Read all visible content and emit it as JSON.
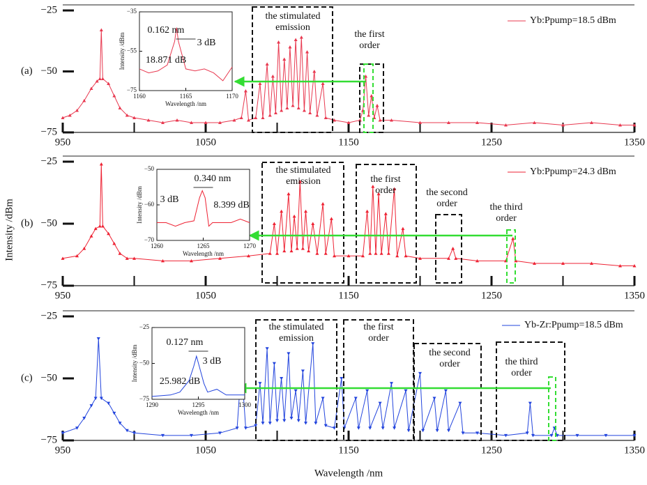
{
  "figure": {
    "xlabel": "Wavelength /nm",
    "ylabel": "Intensity /dBm"
  },
  "chart_data": [
    {
      "type": "line",
      "panel_label": "(a)",
      "marker": "up",
      "x": [
        950,
        955,
        960,
        965,
        970,
        974,
        976,
        977,
        978,
        982,
        986,
        990,
        995,
        1000,
        1010,
        1020,
        1030,
        1040,
        1050,
        1060,
        1070,
        1075,
        1078,
        1080,
        1085,
        1088,
        1090,
        1093,
        1095,
        1097,
        1099,
        1101,
        1103,
        1105,
        1107,
        1109,
        1111,
        1113,
        1115,
        1117,
        1119,
        1121,
        1123,
        1126,
        1128,
        1132,
        1134,
        1140,
        1150,
        1158,
        1160,
        1162,
        1164,
        1166,
        1168,
        1170,
        1172,
        1180,
        1200,
        1220,
        1240,
        1260,
        1280,
        1300,
        1320,
        1340,
        1350
      ],
      "series": [
        {
          "name": "Yb:Ppump=18.5 dBm",
          "color": "#e8384f",
          "values": [
            -69,
            -68,
            -66,
            -62,
            -57,
            -54,
            -53,
            -33,
            -53,
            -55,
            -60,
            -65,
            -68,
            -69,
            -70,
            -71,
            -70,
            -71,
            -71,
            -71,
            -70,
            -69,
            -58,
            -70,
            -69,
            -55,
            -69,
            -47,
            -68,
            -52,
            -67,
            -38,
            -66,
            -45,
            -65,
            -40,
            -64,
            -37,
            -65,
            -36,
            -66,
            -42,
            -67,
            -50,
            -68,
            -55,
            -69,
            -70,
            -71,
            -70,
            -66,
            -52,
            -68,
            -60,
            -69,
            -64,
            -70,
            -70,
            -71,
            -71,
            -71,
            -72,
            -71,
            -72,
            -71,
            -72,
            -72
          ]
        }
      ],
      "xlim": [
        950,
        1350
      ],
      "ylim": [
        -75,
        -25
      ],
      "xticks": [
        950,
        1050,
        1150,
        1250,
        1350
      ],
      "xminor": [
        1000,
        1100,
        1200,
        1300
      ],
      "yticks": [
        {
          "value": -25,
          "label": "−25"
        },
        {
          "value": -50,
          "label": "−50"
        },
        {
          "value": -75,
          "label": "−75"
        }
      ],
      "annotations": [
        [
          "the stimulated",
          "emission"
        ],
        [
          "the first",
          "order"
        ]
      ]
    },
    {
      "type": "line",
      "panel_label": "(b)",
      "marker": "up",
      "x": [
        950,
        960,
        965,
        970,
        973,
        976,
        977,
        978,
        982,
        986,
        990,
        995,
        1000,
        1020,
        1040,
        1060,
        1080,
        1095,
        1098,
        1100,
        1103,
        1105,
        1108,
        1110,
        1112,
        1114,
        1116,
        1118,
        1120,
        1122,
        1125,
        1128,
        1132,
        1134,
        1138,
        1140,
        1150,
        1160,
        1163,
        1165,
        1167,
        1169,
        1171,
        1173,
        1176,
        1178,
        1182,
        1184,
        1188,
        1190,
        1200,
        1220,
        1223,
        1225,
        1240,
        1260,
        1265,
        1267,
        1280,
        1300,
        1320,
        1340,
        1350
      ],
      "series": [
        {
          "name": "Yb:Ppump=24.3 dBm",
          "color": "#ee2233",
          "values": [
            -64,
            -63,
            -60,
            -55,
            -52,
            -51,
            -26,
            -51,
            -54,
            -58,
            -62,
            -64,
            -64,
            -65,
            -65,
            -64,
            -63,
            -62,
            -50,
            -62,
            -45,
            -61,
            -38,
            -61,
            -47,
            -60,
            -33,
            -60,
            -45,
            -61,
            -50,
            -62,
            -42,
            -62,
            -48,
            -63,
            -63,
            -63,
            -45,
            -62,
            -35,
            -62,
            -38,
            -62,
            -46,
            -62,
            -36,
            -63,
            -52,
            -63,
            -64,
            -64,
            -60,
            -64,
            -65,
            -65,
            -56,
            -65,
            -66,
            -66,
            -66,
            -67,
            -67
          ]
        }
      ],
      "xlim": [
        950,
        1350
      ],
      "ylim": [
        -75,
        -25
      ],
      "xticks": [
        950,
        1050,
        1150,
        1250,
        1350
      ],
      "xminor": [
        1000,
        1100,
        1200,
        1300
      ],
      "yticks": [
        {
          "value": -25,
          "label": "−25"
        },
        {
          "value": -50,
          "label": "−50"
        },
        {
          "value": -75,
          "label": "−75"
        }
      ],
      "annotations": [
        [
          "the stimulated",
          "emission"
        ],
        [
          "the first",
          "order"
        ],
        [
          "the second",
          "order"
        ],
        [
          "the third",
          "order"
        ]
      ]
    },
    {
      "type": "line",
      "panel_label": "(c)",
      "marker": "down",
      "x": [
        950,
        960,
        965,
        970,
        973,
        975,
        977,
        982,
        986,
        990,
        995,
        1000,
        1020,
        1040,
        1060,
        1072,
        1075,
        1078,
        1085,
        1088,
        1090,
        1093,
        1095,
        1098,
        1100,
        1103,
        1105,
        1108,
        1110,
        1113,
        1115,
        1118,
        1120,
        1125,
        1127,
        1132,
        1134,
        1140,
        1145,
        1147,
        1155,
        1157,
        1163,
        1165,
        1172,
        1174,
        1180,
        1182,
        1190,
        1192,
        1200,
        1202,
        1210,
        1212,
        1218,
        1220,
        1228,
        1230,
        1240,
        1260,
        1275,
        1277,
        1279,
        1292,
        1294,
        1296,
        1310,
        1330,
        1350
      ],
      "series": [
        {
          "name": "Yb-Zr:Ppump=18.5 dBm",
          "color": "#2244dd",
          "values": [
            -72,
            -70,
            -66,
            -61,
            -58,
            -34,
            -58,
            -60,
            -64,
            -68,
            -71,
            -72,
            -73,
            -73,
            -72,
            -70,
            -45,
            -70,
            -69,
            -52,
            -68,
            -38,
            -68,
            -44,
            -67,
            -50,
            -67,
            -40,
            -66,
            -55,
            -67,
            -47,
            -68,
            -36,
            -68,
            -58,
            -69,
            -70,
            -50,
            -70,
            -58,
            -70,
            -55,
            -70,
            -60,
            -70,
            -52,
            -70,
            -55,
            -71,
            -48,
            -71,
            -58,
            -71,
            -55,
            -71,
            -60,
            -72,
            -72,
            -73,
            -72,
            -60,
            -73,
            -73,
            -70,
            -73,
            -73,
            -73,
            -73
          ]
        }
      ],
      "xlim": [
        950,
        1350
      ],
      "ylim": [
        -75,
        -25
      ],
      "xticks": [
        950,
        1050,
        1150,
        1250,
        1350
      ],
      "xminor": [
        1000,
        1100,
        1200,
        1300
      ],
      "yticks": [
        {
          "value": -25,
          "label": "−25"
        },
        {
          "value": -50,
          "label": "−50"
        },
        {
          "value": -75,
          "label": "−75"
        }
      ],
      "annotations": [
        [
          "the stimulated",
          "emission"
        ],
        [
          "the first",
          "order"
        ],
        [
          "the second",
          "order"
        ],
        [
          "the third",
          "order"
        ]
      ]
    },
    {
      "type": "inset",
      "xlabel": "Wavelength /nm",
      "ylabel": "Intensity /dBm",
      "color": "#e8384f",
      "x": [
        1160,
        1161,
        1162,
        1163,
        1163.8,
        1164,
        1164.2,
        1165,
        1166,
        1167,
        1168,
        1169,
        1170
      ],
      "values": [
        -64,
        -66,
        -65,
        -62,
        -50,
        -43,
        -50,
        -64,
        -65,
        -64,
        -66,
        -70,
        -63
      ],
      "xlim": [
        1160,
        1170
      ],
      "ylim": [
        -75,
        -35
      ],
      "xticks": [
        1160,
        1165,
        1170
      ],
      "yticks": [
        {
          "value": -35,
          "label": "−35"
        },
        {
          "value": -55,
          "label": "−55"
        },
        {
          "value": -75,
          "label": "−75"
        }
      ],
      "annotations": [
        [
          "0.162 nm"
        ],
        [
          "3 dB"
        ],
        [
          "18.871 dB"
        ]
      ]
    },
    {
      "type": "inset",
      "xlabel": "Wavelength /nm",
      "ylabel": "Intensity /dBm",
      "color": "#ee2233",
      "x": [
        1260,
        1261,
        1262,
        1263,
        1264,
        1264.6,
        1264.9,
        1265.2,
        1265.6,
        1266,
        1267,
        1268,
        1269,
        1270
      ],
      "values": [
        -65,
        -65,
        -66,
        -65,
        -64.5,
        -58,
        -56,
        -58,
        -66,
        -65,
        -65,
        -65,
        -64,
        -65
      ],
      "xlim": [
        1260,
        1270
      ],
      "ylim": [
        -70,
        -50
      ],
      "xticks": [
        1260,
        1265,
        1270
      ],
      "yticks": [
        {
          "value": -50,
          "label": "−50"
        },
        {
          "value": -60,
          "label": "−60"
        },
        {
          "value": -70,
          "label": "−70"
        }
      ],
      "annotations": [
        [
          "0.340 nm"
        ],
        [
          "3 dB"
        ],
        [
          "8.399 dB"
        ]
      ]
    },
    {
      "type": "inset",
      "xlabel": "Wavelength /nm",
      "ylabel": "Intensity /dBm",
      "color": "#2244dd",
      "x": [
        1290,
        1292,
        1293,
        1294,
        1294.5,
        1294.8,
        1295.1,
        1295.6,
        1296,
        1297,
        1298,
        1300
      ],
      "values": [
        -73,
        -72,
        -70,
        -62,
        -52,
        -45,
        -52,
        -64,
        -70,
        -68,
        -72,
        -72
      ],
      "xlim": [
        1290,
        1300
      ],
      "ylim": [
        -75,
        -25
      ],
      "xticks": [
        1290,
        1295,
        1300
      ],
      "yticks": [
        {
          "value": -25,
          "label": "−25"
        },
        {
          "value": -50,
          "label": "−50"
        },
        {
          "value": -75,
          "label": "−75"
        }
      ],
      "annotations": [
        [
          "0.127 nm"
        ],
        [
          "3 dB"
        ],
        [
          "25.982 dB"
        ]
      ]
    }
  ]
}
